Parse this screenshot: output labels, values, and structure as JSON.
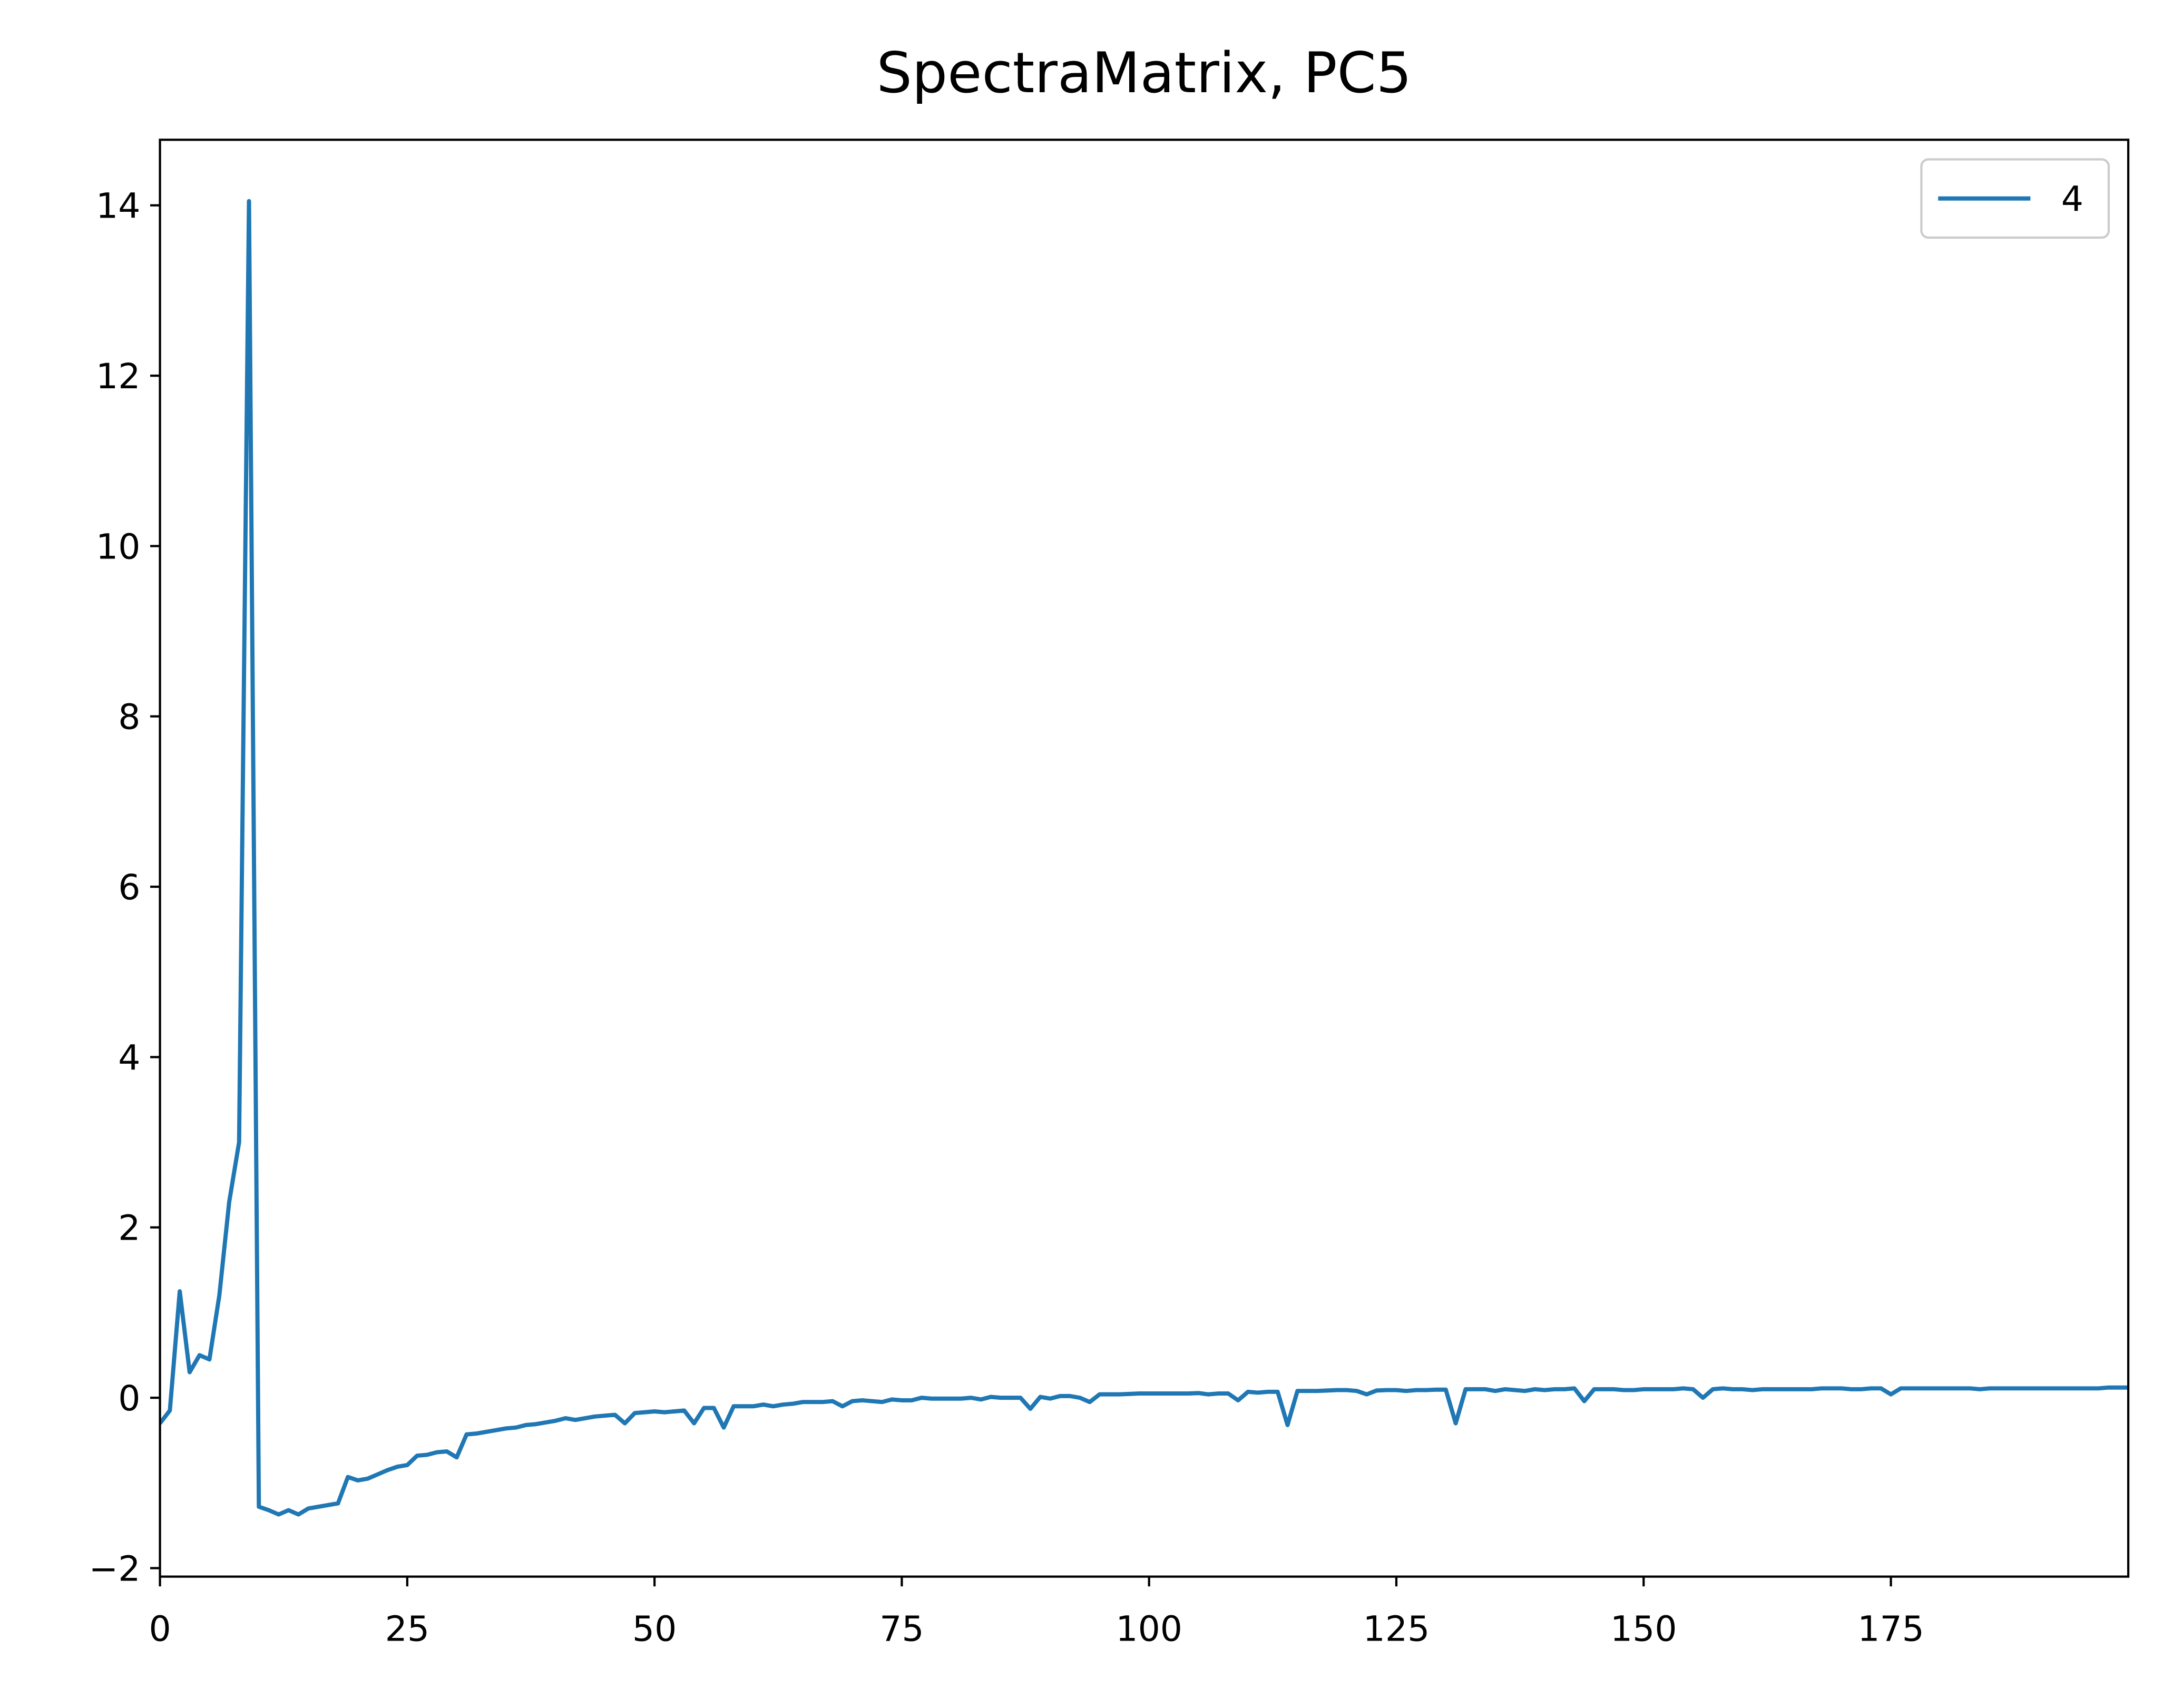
{
  "chart_data": {
    "type": "line",
    "title": "SpectraMatrix, PC5",
    "x": [
      0,
      1,
      2,
      3,
      4,
      5,
      6,
      7,
      8,
      9,
      10,
      11,
      12,
      13,
      14,
      15,
      16,
      17,
      18,
      19,
      20,
      21,
      22,
      23,
      24,
      25,
      26,
      27,
      28,
      29,
      30,
      31,
      32,
      33,
      34,
      35,
      36,
      37,
      38,
      39,
      40,
      41,
      42,
      43,
      44,
      45,
      46,
      47,
      48,
      49,
      50,
      51,
      52,
      53,
      54,
      55,
      56,
      57,
      58,
      59,
      60,
      61,
      62,
      63,
      64,
      65,
      66,
      67,
      68,
      69,
      70,
      71,
      72,
      73,
      74,
      75,
      76,
      77,
      78,
      79,
      80,
      81,
      82,
      83,
      84,
      85,
      86,
      87,
      88,
      89,
      90,
      91,
      92,
      93,
      94,
      95,
      96,
      97,
      98,
      99,
      100,
      101,
      102,
      103,
      104,
      105,
      106,
      107,
      108,
      109,
      110,
      111,
      112,
      113,
      114,
      115,
      116,
      117,
      118,
      119,
      120,
      121,
      122,
      123,
      124,
      125,
      126,
      127,
      128,
      129,
      130,
      131,
      132,
      133,
      134,
      135,
      136,
      137,
      138,
      139,
      140,
      141,
      142,
      143,
      144,
      145,
      146,
      147,
      148,
      149,
      150,
      151,
      152,
      153,
      154,
      155,
      156,
      157,
      158,
      159,
      160,
      161,
      162,
      163,
      164,
      165,
      166,
      167,
      168,
      169,
      170,
      171,
      172,
      173,
      174,
      175,
      176,
      177,
      178,
      179,
      180,
      181,
      182,
      183,
      184,
      185,
      186,
      187,
      188,
      189,
      190,
      191,
      192,
      193,
      194,
      195,
      196,
      197,
      198,
      199
    ],
    "series": [
      {
        "name": "4",
        "color": "#1f77b4",
        "values": [
          -0.3,
          -0.15,
          1.25,
          0.3,
          0.5,
          0.45,
          1.2,
          2.3,
          3.0,
          14.05,
          -1.28,
          -1.32,
          -1.37,
          -1.32,
          -1.37,
          -1.3,
          -1.28,
          -1.26,
          -1.24,
          -0.93,
          -0.97,
          -0.95,
          -0.9,
          -0.85,
          -0.81,
          -0.79,
          -0.68,
          -0.67,
          -0.64,
          -0.63,
          -0.7,
          -0.43,
          -0.42,
          -0.4,
          -0.38,
          -0.36,
          -0.35,
          -0.32,
          -0.31,
          -0.29,
          -0.27,
          -0.24,
          -0.26,
          -0.24,
          -0.22,
          -0.21,
          -0.2,
          -0.3,
          -0.18,
          -0.17,
          -0.16,
          -0.17,
          -0.16,
          -0.15,
          -0.3,
          -0.12,
          -0.12,
          -0.35,
          -0.1,
          -0.1,
          -0.1,
          -0.08,
          -0.1,
          -0.08,
          -0.07,
          -0.05,
          -0.05,
          -0.05,
          -0.04,
          -0.1,
          -0.04,
          -0.03,
          -0.04,
          -0.05,
          -0.02,
          -0.03,
          -0.03,
          0.0,
          -0.01,
          -0.01,
          -0.01,
          -0.01,
          0.0,
          -0.02,
          0.01,
          0.0,
          0.0,
          0.0,
          -0.13,
          0.01,
          -0.01,
          0.02,
          0.02,
          0.0,
          -0.05,
          0.04,
          0.04,
          0.04,
          0.045,
          0.05,
          0.05,
          0.05,
          0.05,
          0.05,
          0.05,
          0.055,
          0.04,
          0.05,
          0.05,
          -0.03,
          0.07,
          0.06,
          0.07,
          0.07,
          -0.32,
          0.08,
          0.08,
          0.08,
          0.085,
          0.09,
          0.09,
          0.08,
          0.04,
          0.085,
          0.09,
          0.09,
          0.08,
          0.09,
          0.09,
          0.095,
          0.095,
          -0.3,
          0.1,
          0.1,
          0.1,
          0.08,
          0.1,
          0.09,
          0.08,
          0.1,
          0.09,
          0.1,
          0.1,
          0.11,
          -0.04,
          0.1,
          0.1,
          0.1,
          0.09,
          0.09,
          0.1,
          0.1,
          0.1,
          0.1,
          0.11,
          0.1,
          0.0,
          0.1,
          0.11,
          0.1,
          0.1,
          0.09,
          0.1,
          0.1,
          0.1,
          0.1,
          0.1,
          0.1,
          0.11,
          0.11,
          0.11,
          0.1,
          0.1,
          0.11,
          0.11,
          0.04,
          0.11,
          0.11,
          0.11,
          0.11,
          0.11,
          0.11,
          0.11,
          0.11,
          0.1,
          0.11,
          0.11,
          0.11,
          0.11,
          0.11,
          0.11,
          0.11,
          0.11,
          0.11,
          0.11,
          0.11,
          0.11,
          0.12,
          0.12,
          0.12
        ]
      }
    ],
    "xlim": [
      0,
      199
    ],
    "xticks": [
      0,
      25,
      50,
      75,
      100,
      125,
      150,
      175
    ],
    "ylim": [
      -2.1,
      14.77
    ],
    "yticks": [
      {
        "value": -2,
        "label": "−2"
      },
      0,
      2,
      4,
      6,
      8,
      10,
      12,
      14
    ],
    "grid": false,
    "legend": "upper right"
  }
}
